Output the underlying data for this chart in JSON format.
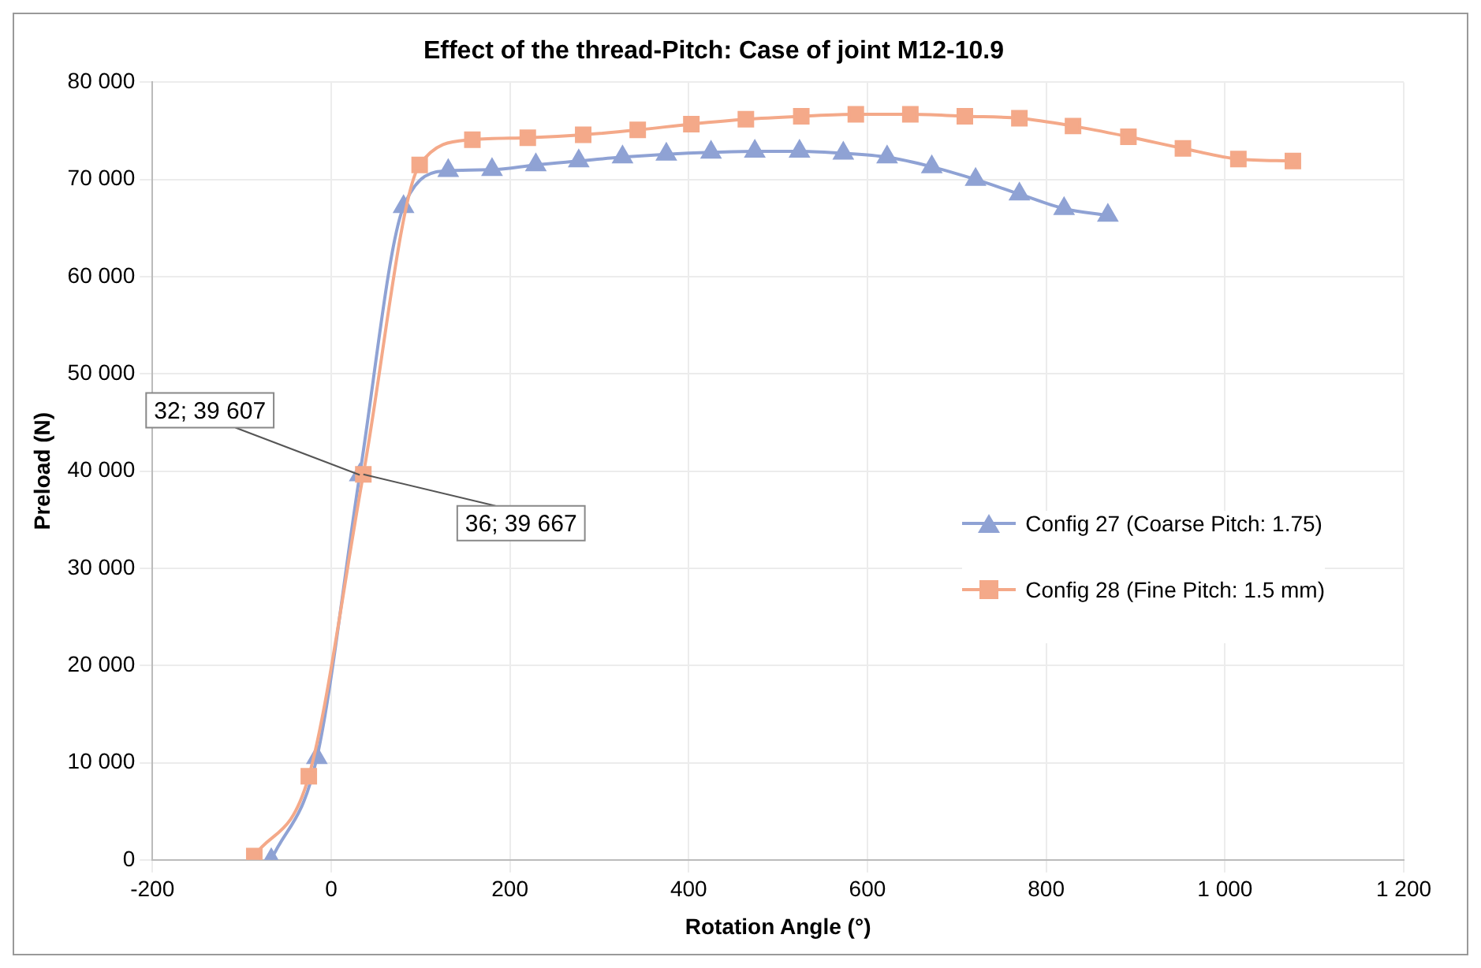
{
  "chart_data": {
    "type": "line",
    "title": "Effect of the thread-Pitch: Case of joint M12-10.9",
    "xlabel": "Rotation Angle (°)",
    "ylabel": "Preload (N)",
    "xlim": [
      -200,
      1200
    ],
    "xticks": [
      -200,
      0,
      200,
      400,
      600,
      800,
      {
        "value": 1000,
        "label": "1 000"
      },
      {
        "value": 1200,
        "label": "1 200"
      }
    ],
    "ylim": [
      0,
      80000
    ],
    "yticks": [
      0,
      {
        "value": 10000,
        "label": "10 000"
      },
      {
        "value": 20000,
        "label": "20 000"
      },
      {
        "value": 30000,
        "label": "30 000"
      },
      {
        "value": 40000,
        "label": "40 000"
      },
      {
        "value": 50000,
        "label": "50 000"
      },
      {
        "value": 60000,
        "label": "60 000"
      },
      {
        "value": 70000,
        "label": "70 000"
      },
      {
        "value": 80000,
        "label": "80 000"
      }
    ],
    "grid": true,
    "legend": "right",
    "series": [
      {
        "name": "Config 27 (Coarse Pitch: 1.75)",
        "color": "#8fa2d4",
        "marker": "triangle",
        "x": [
          -67,
          -16,
          32,
          81,
          131,
          180,
          229,
          277,
          326,
          375,
          425,
          474,
          524,
          573,
          622,
          672,
          721,
          770,
          820,
          869
        ],
        "values": [
          0,
          10500,
          39607,
          67200,
          70900,
          71000,
          71500,
          71900,
          72300,
          72600,
          72800,
          72900,
          72900,
          72700,
          72300,
          71300,
          70000,
          68500,
          67000,
          66300
        ]
      },
      {
        "name": "Config 28 (Fine Pitch: 1.5 mm)",
        "color": "#f4a989",
        "marker": "square",
        "x": [
          -86,
          -25,
          36,
          99,
          158,
          220,
          282,
          343,
          403,
          464,
          526,
          587,
          648,
          709,
          770,
          830,
          892,
          953,
          1015,
          1076
        ],
        "values": [
          400,
          8600,
          39667,
          71500,
          74100,
          74300,
          74600,
          75100,
          75700,
          76200,
          76500,
          76700,
          76700,
          76500,
          76300,
          75500,
          74400,
          73200,
          72100,
          71900
        ]
      }
    ],
    "annotations": [
      {
        "text": "32; 39 607",
        "x": 32,
        "y": 39607
      },
      {
        "text": "36; 39 667",
        "x": 36,
        "y": 39667
      }
    ]
  }
}
